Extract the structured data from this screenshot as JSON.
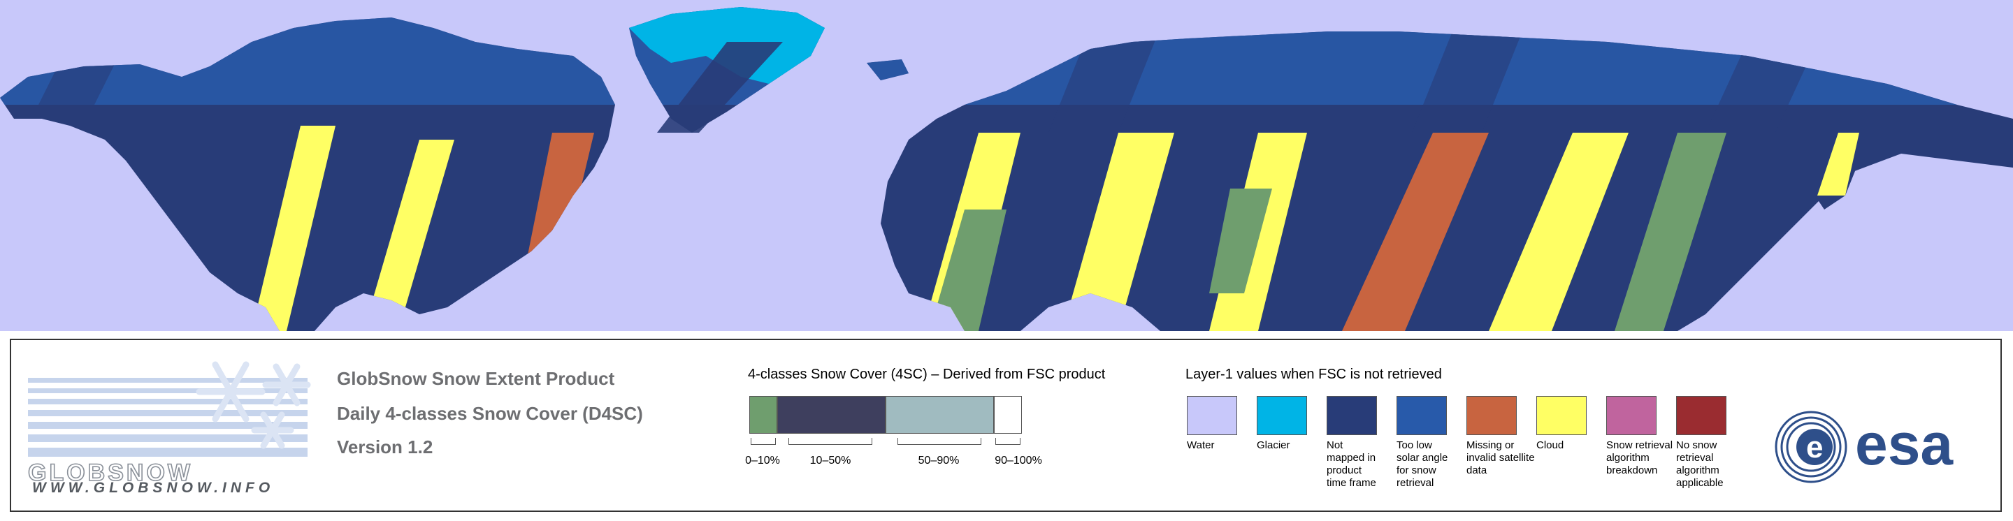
{
  "product": {
    "line1": "GlobSnow Snow Extent Product",
    "line2": "Daily 4-classes Snow Cover (D4SC)",
    "line3": "Version 1.2"
  },
  "logo": {
    "globsnow_wordmark": "GLOBSNOW",
    "globsnow_url": "WWW.GLOBSNOW.INFO",
    "esa_wordmark": "esa"
  },
  "snow_cover": {
    "title": "4-classes Snow Cover (4SC) – Derived from FSC product",
    "classes": [
      {
        "label": "0–10%",
        "color": "#6f9e6e"
      },
      {
        "label": "10–50%",
        "color": "#3e3f5e"
      },
      {
        "label": "50–90%",
        "color": "#a0bbc0"
      },
      {
        "label": "90–100%",
        "color": "#ffffff"
      }
    ]
  },
  "layer1": {
    "title": "Layer-1 values when FSC is not retrieved",
    "items": [
      {
        "label": "Water",
        "color": "#c8c8fa"
      },
      {
        "label": "Glacier",
        "color": "#00b4e6"
      },
      {
        "label": "Not mapped in product time frame",
        "color": "#283c78"
      },
      {
        "label": "Too low solar angle for snow retrieval",
        "color": "#285aaa"
      },
      {
        "label": "Missing or invalid satellite data",
        "color": "#c86440"
      },
      {
        "label": "Cloud",
        "color": "#ffff64"
      },
      {
        "label": "Snow retrieval algorithm breakdown",
        "color": "#c0649e"
      },
      {
        "label": "No snow retrieval algorithm applicable",
        "color": "#9a2c30"
      }
    ]
  },
  "icons": {
    "snowflake": "snowflake-icon",
    "esa": "esa-logo-icon"
  }
}
